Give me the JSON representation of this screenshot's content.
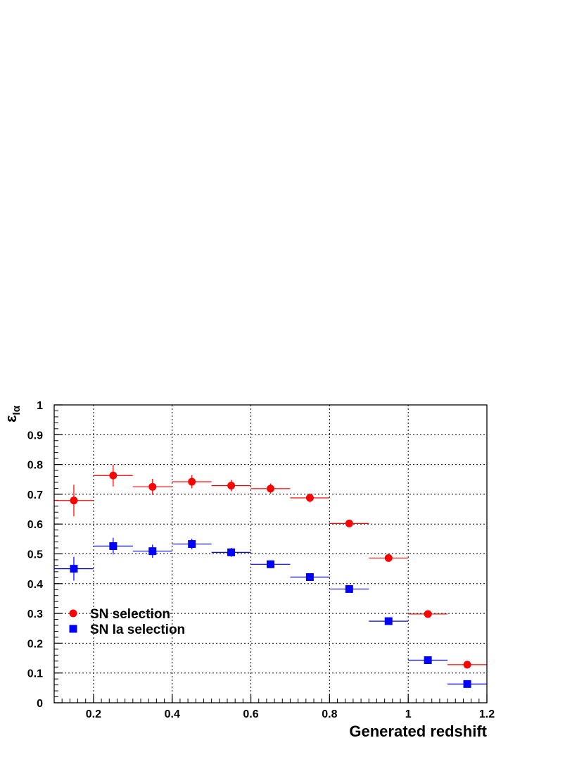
{
  "chart_data": {
    "type": "scatter",
    "title": "",
    "xlabel": "Generated redshift",
    "ylabel": {
      "main": "ε",
      "sub": "Iα"
    },
    "xlim": [
      0.1,
      1.2
    ],
    "ylim": [
      0,
      1
    ],
    "grid": true,
    "legend_position": "lower-left",
    "x_ticks": [
      "0.2",
      "0.4",
      "0.6",
      "0.8",
      "1",
      "1.2"
    ],
    "x_tick_values": [
      0.2,
      0.4,
      0.6,
      0.8,
      1.0,
      1.2
    ],
    "y_ticks": [
      "0",
      "0.1",
      "0.2",
      "0.3",
      "0.4",
      "0.5",
      "0.6",
      "0.7",
      "0.8",
      "0.9",
      "1"
    ],
    "y_tick_values": [
      0,
      0.1,
      0.2,
      0.3,
      0.4,
      0.5,
      0.6,
      0.7,
      0.8,
      0.9,
      1.0
    ],
    "x_bin_halfwidth": 0.05,
    "series": [
      {
        "name": "SN selection",
        "marker": "circle",
        "color": "#ff0000",
        "x": [
          0.15,
          0.25,
          0.35,
          0.45,
          0.55,
          0.65,
          0.75,
          0.85,
          0.95,
          1.05,
          1.15
        ],
        "y": [
          0.679,
          0.763,
          0.725,
          0.742,
          0.729,
          0.719,
          0.688,
          0.602,
          0.486,
          0.298,
          0.128
        ],
        "yerr": [
          0.053,
          0.037,
          0.027,
          0.022,
          0.019,
          0.017,
          0.015,
          0.012,
          0.01,
          0.008,
          0.006
        ]
      },
      {
        "name": "SN Ia selection",
        "marker": "square",
        "color": "#0000ff",
        "x": [
          0.15,
          0.25,
          0.35,
          0.45,
          0.55,
          0.65,
          0.75,
          0.85,
          0.95,
          1.05,
          1.15
        ],
        "y": [
          0.45,
          0.526,
          0.509,
          0.533,
          0.505,
          0.465,
          0.422,
          0.382,
          0.274,
          0.143,
          0.063
        ],
        "yerr": [
          0.04,
          0.028,
          0.022,
          0.018,
          0.015,
          0.013,
          0.011,
          0.01,
          0.008,
          0.006,
          0.005
        ]
      }
    ]
  }
}
